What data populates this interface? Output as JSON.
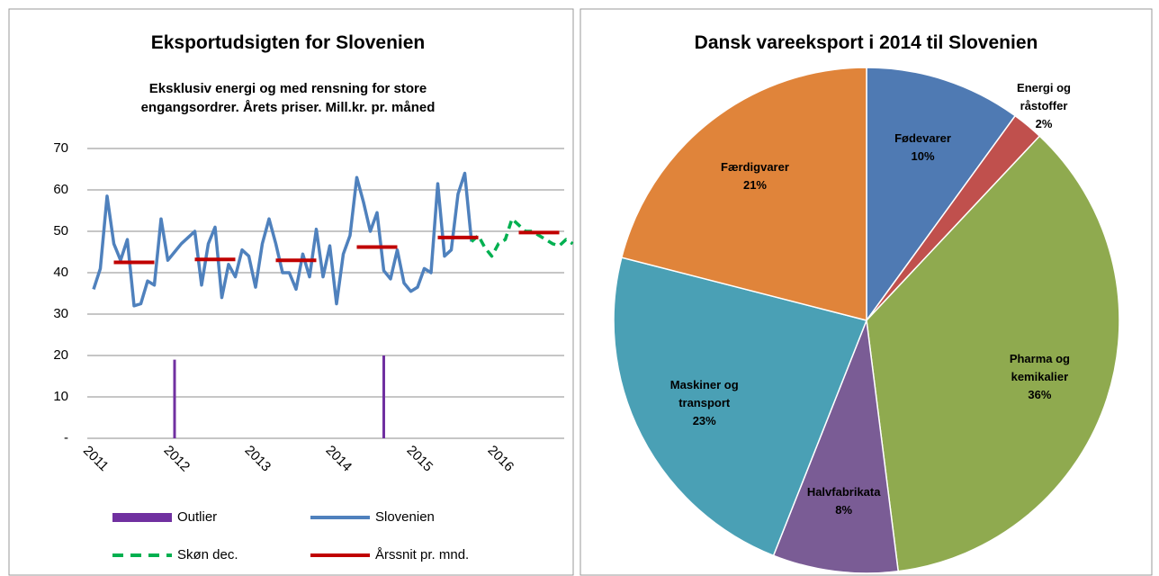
{
  "chart_data": [
    {
      "type": "line",
      "title": "Eksportudsigten for Slovenien",
      "subtitle": "Eksklusiv energi og med rensning for store engangsordrer. Årets priser. Mill.kr. pr. måned",
      "categories": [
        "2011",
        null,
        null,
        null,
        null,
        null,
        null,
        null,
        null,
        null,
        null,
        null,
        "2012",
        null,
        null,
        null,
        null,
        null,
        null,
        null,
        null,
        null,
        null,
        null,
        "2013",
        null,
        null,
        null,
        null,
        null,
        null,
        null,
        null,
        null,
        null,
        null,
        "2014",
        null,
        null,
        null,
        null,
        null,
        null,
        null,
        null,
        null,
        null,
        null,
        "2015",
        null,
        null,
        null,
        null,
        null,
        null,
        null,
        null,
        null,
        null,
        null,
        "2016",
        null,
        null,
        null,
        null,
        null,
        null,
        null,
        null,
        null,
        null,
        null
      ],
      "ylim": [
        0,
        70
      ],
      "yticks": [
        {
          "value": 0,
          "label": "-"
        },
        10,
        20,
        30,
        40,
        50,
        60,
        70
      ],
      "grid": true,
      "series": [
        {
          "name": "Outlier",
          "color": "#7030a0",
          "style": "bar",
          "values": [
            null,
            null,
            null,
            null,
            null,
            null,
            null,
            null,
            null,
            null,
            null,
            null,
            19,
            null,
            null,
            null,
            null,
            null,
            null,
            null,
            null,
            null,
            null,
            null,
            null,
            null,
            null,
            null,
            null,
            null,
            null,
            null,
            null,
            null,
            null,
            null,
            null,
            null,
            null,
            null,
            null,
            null,
            null,
            20,
            null,
            null,
            null,
            null,
            null,
            null,
            null,
            null,
            null,
            null,
            null,
            null,
            null,
            null,
            null,
            null,
            null,
            null,
            null,
            null,
            null,
            null,
            null,
            null,
            null,
            null,
            null,
            null
          ]
        },
        {
          "name": "Slovenien",
          "color": "#4f81bd",
          "style": "solid",
          "values": [
            36,
            41,
            58.5,
            47,
            43,
            48,
            32,
            32.5,
            38,
            37,
            53,
            43,
            45,
            47,
            48.5,
            50,
            37,
            47,
            51,
            34,
            42,
            39,
            45.5,
            44,
            36.5,
            47,
            53,
            47,
            40,
            40,
            36,
            44.5,
            39,
            50.5,
            39,
            46.5,
            32.5,
            44.5,
            49,
            63,
            57,
            50,
            54.5,
            40.5,
            38.5,
            45.5,
            37.5,
            35.5,
            36.5,
            41,
            40,
            61.5,
            44,
            45.5,
            59,
            64,
            47.5,
            null,
            null,
            null,
            null,
            null,
            null,
            null,
            null,
            null,
            null,
            null,
            null,
            null,
            null,
            null
          ]
        },
        {
          "name": "Skøn dec.",
          "color": "#00b050",
          "style": "dashed",
          "values": [
            null,
            null,
            null,
            null,
            null,
            null,
            null,
            null,
            null,
            null,
            null,
            null,
            null,
            null,
            null,
            null,
            null,
            null,
            null,
            null,
            null,
            null,
            null,
            null,
            null,
            null,
            null,
            null,
            null,
            null,
            null,
            null,
            null,
            null,
            null,
            null,
            null,
            null,
            null,
            null,
            null,
            null,
            null,
            null,
            null,
            null,
            null,
            null,
            null,
            null,
            null,
            null,
            null,
            null,
            null,
            null,
            47.5,
            49,
            46,
            44,
            47,
            48,
            53,
            51.5,
            50,
            50,
            49,
            48,
            47,
            46.5,
            48,
            47
          ]
        },
        {
          "name": "Årssnit pr. mnd.",
          "color": "#c00000",
          "style": "thick",
          "values": [
            null,
            null,
            null,
            42.5,
            42.5,
            42.5,
            42.5,
            42.5,
            42.5,
            42.5,
            null,
            null,
            null,
            null,
            null,
            43.2,
            43.2,
            43.2,
            43.2,
            43.2,
            43.2,
            43.2,
            null,
            null,
            null,
            null,
            null,
            43,
            43,
            43,
            43,
            43,
            43,
            43,
            null,
            null,
            null,
            null,
            null,
            46.2,
            46.2,
            46.2,
            46.2,
            46.2,
            46.2,
            46.2,
            null,
            null,
            null,
            null,
            null,
            48.5,
            48.5,
            48.5,
            48.5,
            48.5,
            48.5,
            48.5,
            null,
            null,
            null,
            null,
            null,
            49.7,
            49.7,
            49.7,
            49.7,
            49.7,
            49.7,
            49.7,
            null,
            null
          ]
        }
      ]
    },
    {
      "type": "pie",
      "title": "Dansk vareeksport i 2014 til Slovenien",
      "categories": [
        "Fødevarer",
        "Energi og råstoffer",
        "Pharma og kemikalier",
        "Halvfabrikata",
        "Maskiner og transport",
        "Færdigvarer"
      ],
      "values": [
        10,
        2,
        36,
        8,
        23,
        21
      ],
      "value_labels": [
        "10%",
        "2%",
        "36%",
        "8%",
        "23%",
        "21%"
      ],
      "colors": [
        "#4f7ab3",
        "#c0504d",
        "#8faa4f",
        "#7a5c95",
        "#4aa0b5",
        "#e0843a"
      ]
    }
  ]
}
